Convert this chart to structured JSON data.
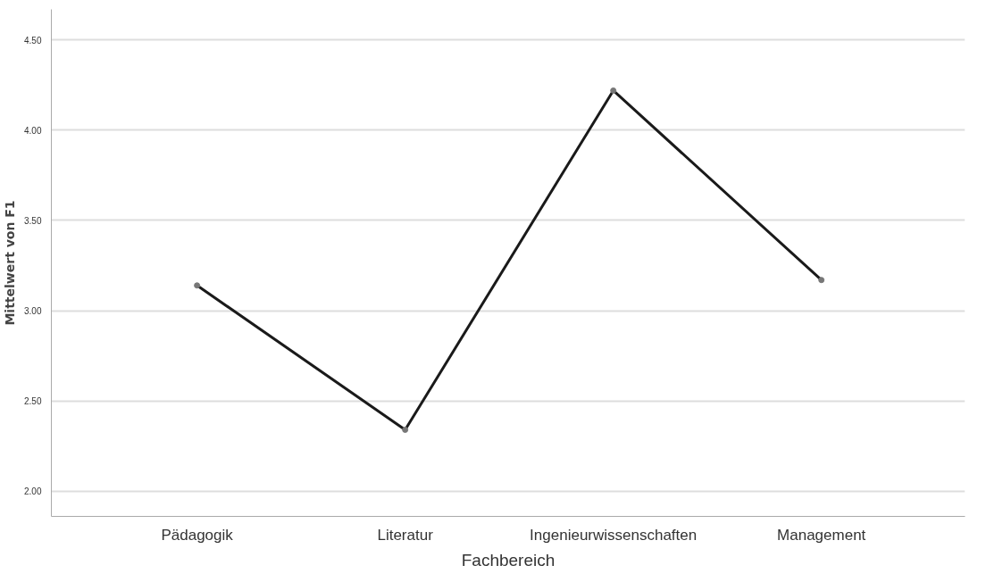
{
  "chart_data": {
    "type": "line",
    "xlabel": "Fachbereich",
    "ylabel": "Mittelwert von F1",
    "categories": [
      "Pädagogik",
      "Literatur",
      "Ingenieurwissenschaften",
      "Management"
    ],
    "series": [
      {
        "color": "#1a1a1a",
        "values": [
          3.14,
          2.34,
          4.22,
          3.17
        ]
      }
    ],
    "ylim": [
      1.86,
      4.67
    ],
    "yticks": [
      {
        "value": 2,
        "label": "2.00"
      },
      {
        "value": 2.5,
        "label": "2.50"
      },
      {
        "value": 3,
        "label": "3.00"
      },
      {
        "value": 3.5,
        "label": "3.50"
      },
      {
        "value": 4,
        "label": "4.00"
      },
      {
        "value": 4.5,
        "label": "4.50"
      }
    ],
    "grid": "y",
    "marker": "circle",
    "line_style": "solid"
  }
}
